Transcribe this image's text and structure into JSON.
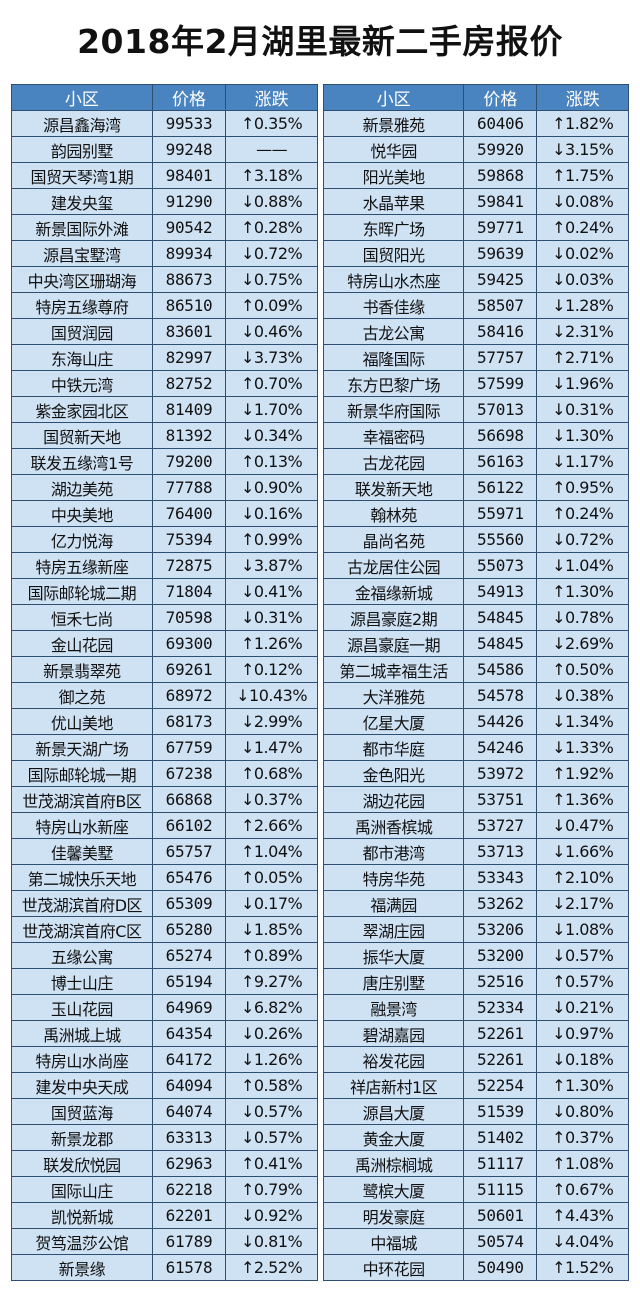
{
  "title": "2018年2月湖里最新二手房报价",
  "headers": {
    "name": "小区",
    "price": "价格",
    "change": "涨跌"
  },
  "left_rows": [
    {
      "name": "源昌鑫海湾",
      "price": "99533",
      "change": "↑0.35%"
    },
    {
      "name": "韵园别墅",
      "price": "99248",
      "change": "——"
    },
    {
      "name": "国贸天琴湾1期",
      "price": "98401",
      "change": "↑3.18%"
    },
    {
      "name": "建发央玺",
      "price": "91290",
      "change": "↓0.88%"
    },
    {
      "name": "新景国际外滩",
      "price": "90542",
      "change": "↑0.28%"
    },
    {
      "name": "源昌宝墅湾",
      "price": "89934",
      "change": "↓0.72%"
    },
    {
      "name": "中央湾区珊瑚海",
      "price": "88673",
      "change": "↓0.75%"
    },
    {
      "name": "特房五缘尊府",
      "price": "86510",
      "change": "↑0.09%"
    },
    {
      "name": "国贸润园",
      "price": "83601",
      "change": "↓0.46%"
    },
    {
      "name": "东海山庄",
      "price": "82997",
      "change": "↓3.73%"
    },
    {
      "name": "中铁元湾",
      "price": "82752",
      "change": "↑0.70%"
    },
    {
      "name": "紫金家园北区",
      "price": "81409",
      "change": "↓1.70%"
    },
    {
      "name": "国贸新天地",
      "price": "81392",
      "change": "↓0.34%"
    },
    {
      "name": "联发五缘湾1号",
      "price": "79200",
      "change": "↑0.13%"
    },
    {
      "name": "湖边美苑",
      "price": "77788",
      "change": "↓0.90%"
    },
    {
      "name": "中央美地",
      "price": "76400",
      "change": "↓0.16%"
    },
    {
      "name": "亿力悦海",
      "price": "75394",
      "change": "↑0.99%"
    },
    {
      "name": "特房五缘新座",
      "price": "72875",
      "change": "↓3.87%"
    },
    {
      "name": "国际邮轮城二期",
      "price": "71804",
      "change": "↓0.41%"
    },
    {
      "name": "恒禾七尚",
      "price": "70598",
      "change": "↓0.31%"
    },
    {
      "name": "金山花园",
      "price": "69300",
      "change": "↑1.26%"
    },
    {
      "name": "新景翡翠苑",
      "price": "69261",
      "change": "↑0.12%"
    },
    {
      "name": "御之苑",
      "price": "68972",
      "change": "↓10.43%"
    },
    {
      "name": "优山美地",
      "price": "68173",
      "change": "↓2.99%"
    },
    {
      "name": "新景天湖广场",
      "price": "67759",
      "change": "↓1.47%"
    },
    {
      "name": "国际邮轮城一期",
      "price": "67238",
      "change": "↑0.68%"
    },
    {
      "name": "世茂湖滨首府B区",
      "price": "66868",
      "change": "↓0.37%"
    },
    {
      "name": "特房山水新座",
      "price": "66102",
      "change": "↑2.66%"
    },
    {
      "name": "佳馨美墅",
      "price": "65757",
      "change": "↑1.04%"
    },
    {
      "name": "第二城快乐天地",
      "price": "65476",
      "change": "↑0.05%"
    },
    {
      "name": "世茂湖滨首府D区",
      "price": "65309",
      "change": "↓0.17%"
    },
    {
      "name": "世茂湖滨首府C区",
      "price": "65280",
      "change": "↓1.85%"
    },
    {
      "name": "五缘公寓",
      "price": "65274",
      "change": "↑0.89%"
    },
    {
      "name": "博士山庄",
      "price": "65194",
      "change": "↑9.27%"
    },
    {
      "name": "玉山花园",
      "price": "64969",
      "change": "↓6.82%"
    },
    {
      "name": "禹洲城上城",
      "price": "64354",
      "change": "↓0.26%"
    },
    {
      "name": "特房山水尚座",
      "price": "64172",
      "change": "↓1.26%"
    },
    {
      "name": "建发中央天成",
      "price": "64094",
      "change": "↑0.58%"
    },
    {
      "name": "国贸蓝海",
      "price": "64074",
      "change": "↓0.57%"
    },
    {
      "name": "新景龙郡",
      "price": "63313",
      "change": "↓0.57%"
    },
    {
      "name": "联发欣悦园",
      "price": "62963",
      "change": "↑0.41%"
    },
    {
      "name": "国际山庄",
      "price": "62218",
      "change": "↑0.79%"
    },
    {
      "name": "凯悦新城",
      "price": "62201",
      "change": "↓0.92%"
    },
    {
      "name": "贺笃温莎公馆",
      "price": "61789",
      "change": "↓0.81%"
    },
    {
      "name": "新景缘",
      "price": "61578",
      "change": "↑2.52%"
    }
  ],
  "right_rows": [
    {
      "name": "新景雅苑",
      "price": "60406",
      "change": "↑1.82%"
    },
    {
      "name": "悦华园",
      "price": "59920",
      "change": "↓3.15%"
    },
    {
      "name": "阳光美地",
      "price": "59868",
      "change": "↑1.75%"
    },
    {
      "name": "水晶苹果",
      "price": "59841",
      "change": "↓0.08%"
    },
    {
      "name": "东晖广场",
      "price": "59771",
      "change": "↑0.24%"
    },
    {
      "name": "国贸阳光",
      "price": "59639",
      "change": "↓0.02%"
    },
    {
      "name": "特房山水杰座",
      "price": "59425",
      "change": "↓0.03%"
    },
    {
      "name": "书香佳缘",
      "price": "58507",
      "change": "↓1.28%"
    },
    {
      "name": "古龙公寓",
      "price": "58416",
      "change": "↓2.31%"
    },
    {
      "name": "福隆国际",
      "price": "57757",
      "change": "↑2.71%"
    },
    {
      "name": "东方巴黎广场",
      "price": "57599",
      "change": "↓1.96%"
    },
    {
      "name": "新景华府国际",
      "price": "57013",
      "change": "↓0.31%"
    },
    {
      "name": "幸福密码",
      "price": "56698",
      "change": "↓1.30%"
    },
    {
      "name": "古龙花园",
      "price": "56163",
      "change": "↓1.17%"
    },
    {
      "name": "联发新天地",
      "price": "56122",
      "change": "↑0.95%"
    },
    {
      "name": "翰林苑",
      "price": "55971",
      "change": "↑0.24%"
    },
    {
      "name": "晶尚名苑",
      "price": "55560",
      "change": "↓0.72%"
    },
    {
      "name": "古龙居住公园",
      "price": "55073",
      "change": "↓1.04%"
    },
    {
      "name": "金福缘新城",
      "price": "54913",
      "change": "↑1.30%"
    },
    {
      "name": "源昌豪庭2期",
      "price": "54845",
      "change": "↓0.78%"
    },
    {
      "name": "源昌豪庭一期",
      "price": "54845",
      "change": "↓2.69%"
    },
    {
      "name": "第二城幸福生活",
      "price": "54586",
      "change": "↑0.50%"
    },
    {
      "name": "大洋雅苑",
      "price": "54578",
      "change": "↓0.38%"
    },
    {
      "name": "亿星大厦",
      "price": "54426",
      "change": "↓1.34%"
    },
    {
      "name": "都市华庭",
      "price": "54246",
      "change": "↓1.33%"
    },
    {
      "name": "金色阳光",
      "price": "53972",
      "change": "↑1.92%"
    },
    {
      "name": "湖边花园",
      "price": "53751",
      "change": "↑1.36%"
    },
    {
      "name": "禹洲香槟城",
      "price": "53727",
      "change": "↓0.47%"
    },
    {
      "name": "都市港湾",
      "price": "53713",
      "change": "↓1.66%"
    },
    {
      "name": "特房华苑",
      "price": "53343",
      "change": "↑2.10%"
    },
    {
      "name": "福满园",
      "price": "53262",
      "change": "↓2.17%"
    },
    {
      "name": "翠湖庄园",
      "price": "53206",
      "change": "↓1.08%"
    },
    {
      "name": "振华大厦",
      "price": "53200",
      "change": "↓0.57%"
    },
    {
      "name": "唐庄别墅",
      "price": "52516",
      "change": "↑0.57%"
    },
    {
      "name": "融景湾",
      "price": "52334",
      "change": "↓0.21%"
    },
    {
      "name": "碧湖嘉园",
      "price": "52261",
      "change": "↓0.97%"
    },
    {
      "name": "裕发花园",
      "price": "52261",
      "change": "↓0.18%"
    },
    {
      "name": "祥店新村1区",
      "price": "52254",
      "change": "↑1.30%"
    },
    {
      "name": "源昌大厦",
      "price": "51539",
      "change": "↓0.80%"
    },
    {
      "name": "黄金大厦",
      "price": "51402",
      "change": "↑0.37%"
    },
    {
      "name": "禹洲棕榈城",
      "price": "51117",
      "change": "↑1.08%"
    },
    {
      "name": "鹭槟大厦",
      "price": "51115",
      "change": "↑0.67%"
    },
    {
      "name": "明发豪庭",
      "price": "50601",
      "change": "↑4.43%"
    },
    {
      "name": "中福城",
      "price": "50574",
      "change": "↓4.04%"
    },
    {
      "name": "中环花园",
      "price": "50490",
      "change": "↑1.52%"
    }
  ]
}
